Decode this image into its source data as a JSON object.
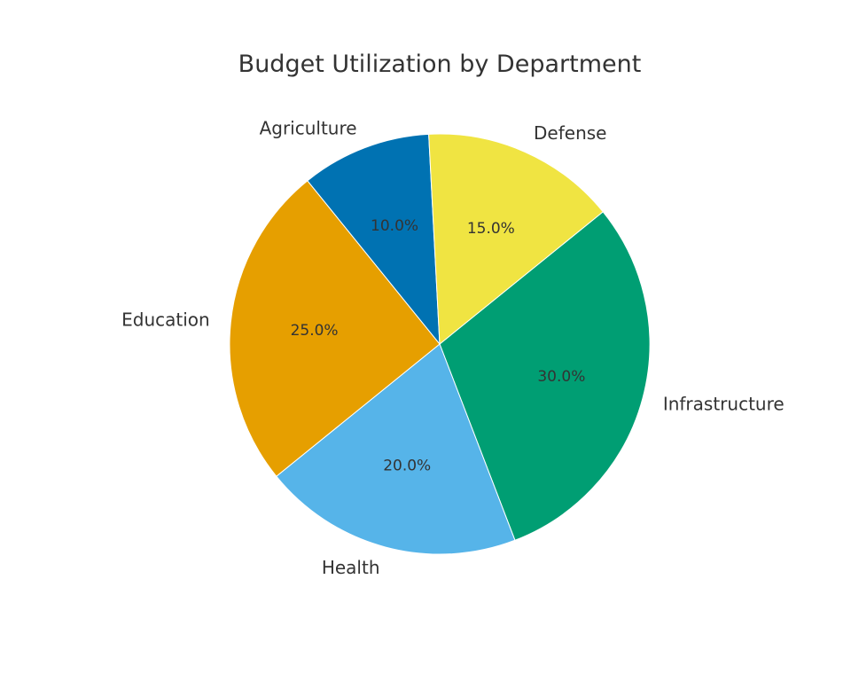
{
  "chart_data": {
    "type": "pie",
    "title": "Budget Utilization by Department",
    "slices": [
      {
        "label": "Infrastructure",
        "value": 30.0,
        "pct_label": "30.0%",
        "color": "#009E73"
      },
      {
        "label": "Health",
        "value": 20.0,
        "pct_label": "20.0%",
        "color": "#56B4E9"
      },
      {
        "label": "Education",
        "value": 25.0,
        "pct_label": "25.0%",
        "color": "#E69F00"
      },
      {
        "label": "Agriculture",
        "value": 10.0,
        "pct_label": "10.0%",
        "color": "#0072B2"
      },
      {
        "label": "Defense",
        "value": 15.0,
        "pct_label": "15.0%",
        "color": "#F0E442"
      }
    ],
    "direction": "clockwise",
    "legend": "none"
  }
}
